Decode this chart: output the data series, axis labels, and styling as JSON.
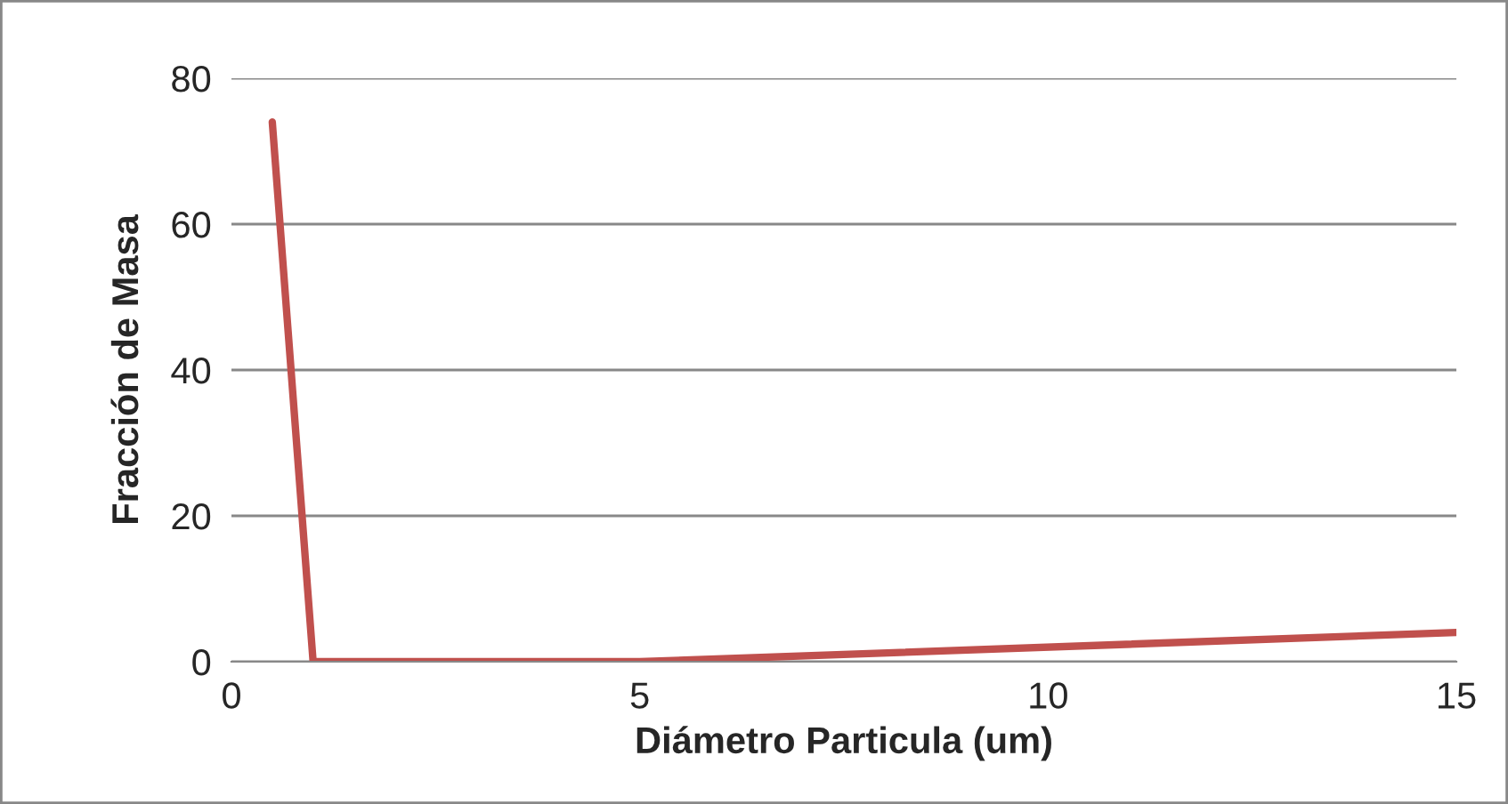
{
  "chart_data": {
    "type": "line",
    "xlabel": "Diámetro Particula (um)",
    "ylabel": "Fracción de Masa",
    "x": [
      0.5,
      1,
      5,
      15
    ],
    "series": [
      {
        "color": "#c0504d",
        "values": [
          74,
          0,
          0,
          4
        ]
      }
    ],
    "xlim": [
      0,
      15
    ],
    "xticks": [
      0,
      5,
      10,
      15
    ],
    "ylim": [
      0,
      80
    ],
    "yticks": [
      0,
      20,
      40,
      60,
      80
    ],
    "grid": "y",
    "marker": "none",
    "line_style": "solid",
    "legend": false
  }
}
